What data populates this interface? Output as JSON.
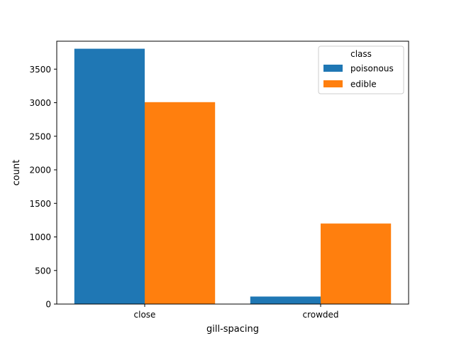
{
  "chart_data": {
    "type": "bar",
    "categories": [
      "close",
      "crowded"
    ],
    "series": [
      {
        "name": "poisonous",
        "values": [
          3804,
          112
        ],
        "color": "#1f77b4"
      },
      {
        "name": "edible",
        "values": [
          3008,
          1200
        ],
        "color": "#ff7f0e"
      }
    ],
    "xlabel": "gill-spacing",
    "ylabel": "count",
    "ylim": [
      0,
      3916
    ],
    "yticks": [
      0,
      500,
      1000,
      1500,
      2000,
      2500,
      3000,
      3500
    ],
    "legend": {
      "title": "class",
      "placement": "top-right"
    },
    "grid": false
  }
}
